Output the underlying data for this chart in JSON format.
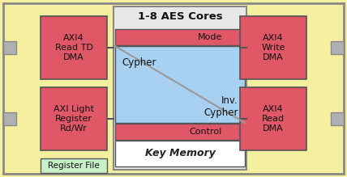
{
  "bg_outer": "#f5f0a0",
  "red_box": "#e05868",
  "blue_box": "#a8d0f0",
  "green_box": "#c8f0c8",
  "gray_conn": "#b0b0b0",
  "inner_bg": "#e8e8e8",
  "white_bg": "#ffffff",
  "title": "1-8 AES Cores",
  "mode_label": "Mode",
  "cypher_label": "Cypher",
  "inv_cypher_label": "Inv.\nCypher",
  "control_label": "Control",
  "key_mem_label": "Key Memory",
  "axi_read_td": "AXI4\nRead TD\nDMA",
  "axi_light": "AXI Light\nRegister\nRd/Wr",
  "axi_write": "AXI4\nWrite\nDMA",
  "axi_read": "AXI4\nRead\nDMA",
  "reg_file": "Register File"
}
